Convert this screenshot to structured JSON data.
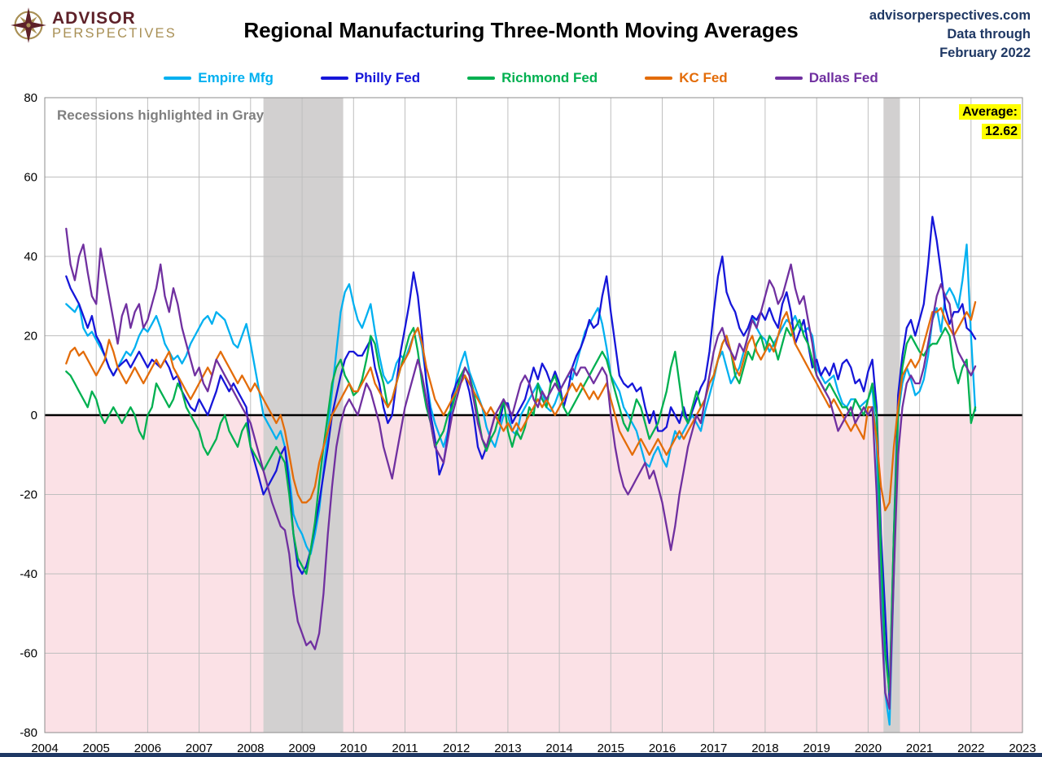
{
  "header": {
    "logo": {
      "line1": "ADVISOR",
      "line2": "PERSPECTIVES"
    },
    "title": "Regional Manufacturing Three-Month Moving Averages",
    "source": {
      "line1": "advisorperspectives.com",
      "line2": "Data through",
      "line3": "February 2022"
    }
  },
  "annotations": {
    "recession_note": "Recessions highlighted in Gray",
    "average_label": "Average:",
    "average_value": "12.62"
  },
  "chart_data": {
    "type": "line",
    "title": "Regional Manufacturing Three-Month Moving Averages",
    "frequency": "monthly",
    "start": "2004-06",
    "end": "2022-02",
    "x_start": 2004.4167,
    "x_axis": {
      "min": 2004,
      "max": 2023,
      "tick_interval": 1
    },
    "y_axis": {
      "min": -80,
      "max": 80,
      "tick_interval": 20
    },
    "grid": true,
    "legend_position": "top",
    "negative_region_color": "#fbe1e6",
    "recession_band_color": "#d2d0d0",
    "recession_bands": [
      [
        2008.25,
        2009.8
      ],
      [
        2020.3,
        2020.62
      ]
    ],
    "latest_average": 12.62,
    "series": [
      {
        "name": "Empire Mfg",
        "color": "#00B0F0",
        "values": [
          28,
          27,
          26,
          28,
          22,
          20,
          21,
          19,
          17,
          15,
          12,
          10,
          12,
          14,
          16,
          15,
          17,
          20,
          22,
          21,
          23,
          25,
          22,
          18,
          16,
          14,
          15,
          13,
          15,
          18,
          20,
          22,
          24,
          25,
          23,
          26,
          25,
          24,
          21,
          18,
          17,
          20,
          23,
          18,
          12,
          6,
          0,
          -2,
          -4,
          -6,
          -4,
          -8,
          -15,
          -25,
          -28,
          -30,
          -33,
          -35,
          -30,
          -24,
          -14,
          -4,
          6,
          16,
          26,
          31,
          33,
          28,
          24,
          22,
          25,
          28,
          21,
          15,
          10,
          8,
          9,
          13,
          15,
          14,
          17,
          20,
          22,
          17,
          9,
          2,
          -2,
          -5,
          -8,
          -4,
          2,
          9,
          13,
          16,
          11,
          8,
          5,
          2,
          -3,
          -6,
          -8,
          -4,
          0,
          0,
          -4,
          -5,
          0,
          2,
          4,
          6,
          8,
          6,
          2,
          1,
          3,
          6,
          8,
          10,
          9,
          13,
          17,
          21,
          23,
          25,
          27,
          23,
          17,
          10,
          8,
          6,
          2,
          0,
          -2,
          -4,
          -8,
          -12,
          -13,
          -10,
          -8,
          -11,
          -13,
          -8,
          -4,
          -6,
          -4,
          -2,
          0,
          -2,
          -4,
          1,
          5,
          9,
          14,
          16,
          12,
          8,
          10,
          12,
          16,
          20,
          25,
          22,
          20,
          19,
          16,
          18,
          20,
          22,
          24,
          23,
          25,
          22,
          21,
          22,
          20,
          12,
          10,
          8,
          9,
          10,
          6,
          3,
          2,
          4,
          4,
          2,
          3,
          4,
          7,
          -8,
          -45,
          -70,
          -78,
          -40,
          0,
          8,
          12,
          9,
          5,
          6,
          9,
          15,
          24,
          27,
          21,
          30,
          32,
          30,
          27,
          34,
          43,
          20,
          1.1
        ]
      },
      {
        "name": "Philly Fed",
        "color": "#1616D9",
        "values": [
          35,
          32,
          30,
          28,
          25,
          22,
          25,
          20,
          18,
          15,
          12,
          10,
          12,
          13,
          14,
          12,
          14,
          16,
          14,
          12,
          14,
          13,
          12,
          14,
          12,
          9,
          10,
          6,
          4,
          2,
          1,
          4,
          2,
          0,
          3,
          6,
          10,
          8,
          6,
          8,
          6,
          4,
          2,
          -8,
          -12,
          -16,
          -20,
          -18,
          -16,
          -14,
          -10,
          -8,
          -18,
          -30,
          -38,
          -40,
          -38,
          -34,
          -28,
          -22,
          -15,
          -8,
          0,
          5,
          10,
          14,
          16,
          16,
          15,
          15,
          17,
          19,
          12,
          8,
          2,
          -2,
          0,
          8,
          16,
          22,
          28,
          36,
          30,
          20,
          8,
          0,
          -6,
          -15,
          -12,
          -5,
          5,
          8,
          10,
          10,
          6,
          0,
          -8,
          -11,
          -8,
          -4,
          0,
          -2,
          3,
          3,
          -2,
          0,
          2,
          4,
          8,
          12,
          9,
          13,
          11,
          8,
          11,
          8,
          2,
          6,
          12,
          15,
          17,
          20,
          24,
          22,
          23,
          30,
          35,
          26,
          18,
          10,
          8,
          7,
          8,
          6,
          7,
          2,
          -2,
          1,
          -4,
          -4,
          -3,
          2,
          0,
          -2,
          2,
          -2,
          1,
          4,
          7,
          9,
          16,
          26,
          35,
          40,
          31,
          28,
          26,
          22,
          20,
          22,
          25,
          24,
          26,
          24,
          27,
          24,
          22,
          28,
          31,
          26,
          18,
          21,
          24,
          18,
          12,
          14,
          10,
          12,
          10,
          13,
          9,
          13,
          14,
          12,
          8,
          9,
          6,
          11,
          14,
          2,
          -30,
          -50,
          -72,
          -30,
          5,
          15,
          22,
          24,
          20,
          24,
          28,
          38,
          50,
          44,
          36,
          27,
          23,
          26,
          26,
          28,
          22,
          21,
          19.2
        ]
      },
      {
        "name": "Richmond Fed",
        "color": "#00B050",
        "values": [
          11,
          10,
          8,
          6,
          4,
          2,
          6,
          4,
          0,
          -2,
          0,
          2,
          0,
          -2,
          0,
          2,
          0,
          -4,
          -6,
          0,
          2,
          8,
          6,
          4,
          2,
          4,
          8,
          6,
          2,
          0,
          -2,
          -4,
          -8,
          -10,
          -8,
          -6,
          -2,
          0,
          -4,
          -6,
          -8,
          -4,
          -2,
          -8,
          -10,
          -12,
          -14,
          -12,
          -10,
          -8,
          -10,
          -12,
          -20,
          -30,
          -36,
          -38,
          -40,
          -34,
          -27,
          -17,
          -8,
          0,
          8,
          12,
          14,
          10,
          8,
          5,
          6,
          9,
          14,
          20,
          18,
          12,
          8,
          2,
          4,
          8,
          12,
          16,
          20,
          22,
          16,
          8,
          2,
          -2,
          -8,
          -6,
          -4,
          0,
          2,
          6,
          10,
          12,
          10,
          6,
          0,
          -6,
          -9,
          -6,
          -4,
          0,
          4,
          -4,
          -8,
          -4,
          -6,
          -3,
          2,
          0,
          8,
          4,
          2,
          8,
          10,
          6,
          2,
          0,
          2,
          4,
          6,
          8,
          10,
          12,
          14,
          16,
          14,
          10,
          6,
          2,
          -2,
          -4,
          0,
          4,
          2,
          -2,
          -6,
          -4,
          -2,
          2,
          6,
          12,
          16,
          8,
          0,
          -2,
          2,
          6,
          2,
          4,
          8,
          10,
          14,
          18,
          20,
          16,
          10,
          8,
          12,
          16,
          14,
          18,
          20,
          16,
          20,
          18,
          14,
          18,
          22,
          20,
          22,
          24,
          20,
          18,
          14,
          10,
          8,
          6,
          8,
          6,
          4,
          2,
          2,
          0,
          4,
          2,
          0,
          4,
          8,
          0,
          -35,
          -60,
          -70,
          -30,
          0,
          12,
          18,
          20,
          18,
          16,
          15,
          17,
          18,
          18,
          20,
          22,
          20,
          12,
          8,
          12,
          14,
          -2,
          2.0
        ]
      },
      {
        "name": "KC Fed",
        "color": "#E36C09",
        "values": [
          13,
          16,
          17,
          15,
          16,
          14,
          12,
          10,
          12,
          14,
          19,
          16,
          12,
          10,
          8,
          10,
          12,
          10,
          8,
          10,
          12,
          14,
          12,
          14,
          16,
          12,
          10,
          8,
          6,
          4,
          6,
          8,
          10,
          12,
          10,
          14,
          16,
          14,
          12,
          10,
          8,
          10,
          8,
          6,
          8,
          6,
          4,
          2,
          0,
          -2,
          0,
          -4,
          -10,
          -16,
          -20,
          -22,
          -22,
          -21,
          -18,
          -12,
          -8,
          -4,
          0,
          2,
          4,
          6,
          8,
          6,
          6,
          8,
          10,
          12,
          8,
          6,
          4,
          2,
          4,
          8,
          12,
          14,
          16,
          20,
          22,
          18,
          12,
          8,
          4,
          2,
          0,
          2,
          4,
          6,
          8,
          10,
          8,
          6,
          4,
          2,
          0,
          2,
          0,
          -2,
          -4,
          -2,
          -4,
          -2,
          -4,
          -2,
          0,
          2,
          4,
          2,
          4,
          2,
          0,
          2,
          4,
          6,
          8,
          6,
          8,
          6,
          4,
          6,
          4,
          6,
          8,
          4,
          0,
          -4,
          -6,
          -8,
          -10,
          -8,
          -6,
          -8,
          -10,
          -8,
          -6,
          -8,
          -10,
          -8,
          -6,
          -4,
          -6,
          -4,
          -2,
          0,
          2,
          4,
          8,
          10,
          14,
          18,
          20,
          16,
          12,
          10,
          14,
          18,
          20,
          16,
          14,
          16,
          18,
          16,
          20,
          24,
          26,
          22,
          18,
          16,
          14,
          12,
          10,
          8,
          6,
          4,
          2,
          4,
          2,
          0,
          -2,
          -4,
          -2,
          -4,
          -6,
          2,
          2,
          -6,
          -18,
          -24,
          -22,
          -8,
          2,
          10,
          12,
          14,
          12,
          14,
          18,
          22,
          26,
          26,
          27,
          24,
          22,
          20,
          22,
          24,
          26,
          24,
          28.5
        ]
      },
      {
        "name": "Dallas Fed",
        "color": "#7030A0",
        "values": [
          47,
          38,
          34,
          40,
          43,
          36,
          30,
          28,
          42,
          36,
          30,
          24,
          18,
          25,
          28,
          22,
          26,
          28,
          22,
          24,
          28,
          32,
          38,
          30,
          26,
          32,
          28,
          22,
          18,
          14,
          10,
          12,
          8,
          6,
          10,
          14,
          12,
          10,
          8,
          6,
          4,
          2,
          0,
          -2,
          -6,
          -10,
          -14,
          -18,
          -22,
          -25,
          -28,
          -29,
          -35,
          -45,
          -52,
          -55,
          -58,
          -57,
          -59,
          -55,
          -45,
          -30,
          -18,
          -8,
          -2,
          2,
          4,
          2,
          0,
          4,
          8,
          6,
          2,
          -2,
          -8,
          -12,
          -16,
          -10,
          -4,
          2,
          6,
          10,
          14,
          10,
          4,
          -2,
          -8,
          -10,
          -12,
          -6,
          0,
          4,
          8,
          12,
          10,
          4,
          -2,
          -6,
          -8,
          -4,
          0,
          2,
          4,
          2,
          0,
          4,
          8,
          10,
          8,
          4,
          2,
          6,
          4,
          6,
          8,
          6,
          8,
          10,
          12,
          10,
          12,
          12,
          10,
          8,
          10,
          12,
          10,
          0,
          -8,
          -14,
          -18,
          -20,
          -18,
          -16,
          -14,
          -12,
          -16,
          -14,
          -18,
          -22,
          -28,
          -34,
          -28,
          -20,
          -14,
          -8,
          -4,
          0,
          -2,
          4,
          10,
          16,
          20,
          22,
          18,
          16,
          14,
          18,
          16,
          20,
          24,
          22,
          26,
          30,
          34,
          32,
          28,
          30,
          34,
          38,
          32,
          28,
          30,
          24,
          18,
          10,
          8,
          6,
          4,
          0,
          -4,
          -2,
          0,
          2,
          -2,
          0,
          2,
          0,
          2,
          -20,
          -50,
          -70,
          -74,
          -40,
          -10,
          2,
          8,
          10,
          8,
          8,
          12,
          18,
          24,
          30,
          33,
          30,
          28,
          20,
          16,
          14,
          12,
          10,
          12.3
        ]
      }
    ]
  }
}
